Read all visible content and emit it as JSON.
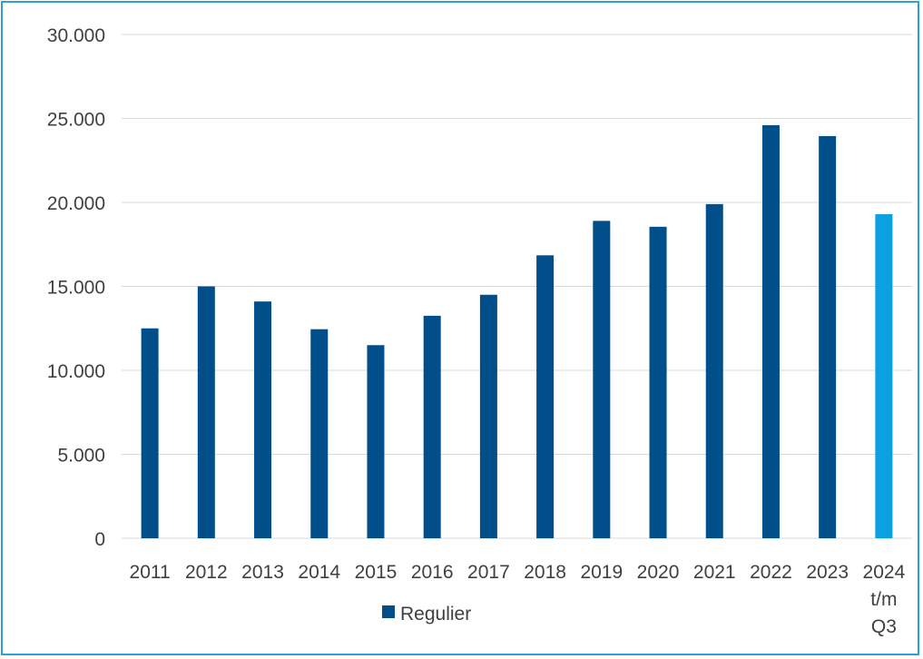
{
  "chart_data": {
    "type": "bar",
    "categories": [
      "2011",
      "2012",
      "2013",
      "2014",
      "2015",
      "2016",
      "2017",
      "2018",
      "2019",
      "2020",
      "2021",
      "2022",
      "2023",
      "2024 t/m Q3"
    ],
    "category_lines": [
      [
        "2011"
      ],
      [
        "2012"
      ],
      [
        "2013"
      ],
      [
        "2014"
      ],
      [
        "2015"
      ],
      [
        "2016"
      ],
      [
        "2017"
      ],
      [
        "2018"
      ],
      [
        "2019"
      ],
      [
        "2020"
      ],
      [
        "2021"
      ],
      [
        "2022"
      ],
      [
        "2023"
      ],
      [
        "2024",
        "t/m",
        "Q3"
      ]
    ],
    "series": [
      {
        "name": "Regulier",
        "values": [
          12500,
          15000,
          14100,
          12450,
          11500,
          13250,
          14500,
          16850,
          18900,
          18550,
          19900,
          24600,
          23950,
          19300
        ]
      }
    ],
    "bar_colors": [
      "#004f8a",
      "#004f8a",
      "#004f8a",
      "#004f8a",
      "#004f8a",
      "#004f8a",
      "#004f8a",
      "#004f8a",
      "#004f8a",
      "#004f8a",
      "#004f8a",
      "#004f8a",
      "#004f8a",
      "#0ba0e0"
    ],
    "yticks": [
      0,
      5000,
      10000,
      15000,
      20000,
      25000,
      30000
    ],
    "ytick_labels": [
      "0",
      "5.000",
      "10.000",
      "15.000",
      "20.000",
      "25.000",
      "30.000"
    ],
    "ylim": [
      0,
      30000
    ],
    "grid": true,
    "grid_color": "#d9d9d9",
    "legend": {
      "position": "bottom",
      "marker_color": "#004f8a"
    },
    "title": "",
    "xlabel": "",
    "ylabel": ""
  }
}
